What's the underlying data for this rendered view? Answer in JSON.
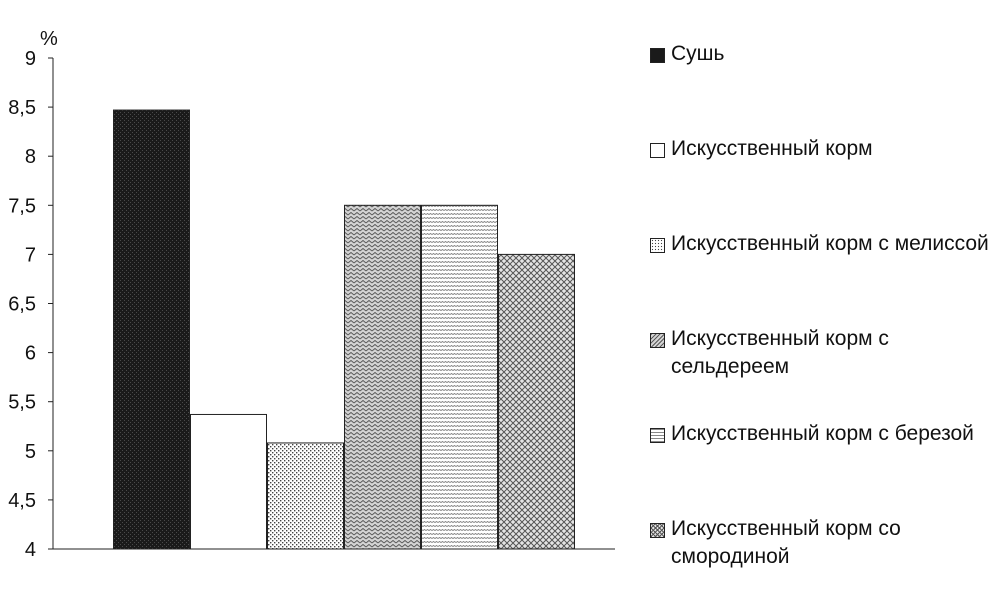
{
  "chart_data": {
    "type": "bar",
    "unit_label": "%",
    "ylim": [
      4,
      9
    ],
    "yticks": [
      "4",
      "4,5",
      "5",
      "5,5",
      "6",
      "6,5",
      "7",
      "7,5",
      "8",
      "8,5",
      "9"
    ],
    "ytick_values": [
      4,
      4.5,
      5,
      5.5,
      6,
      6.5,
      7,
      7.5,
      8,
      8.5,
      9
    ],
    "grid": false,
    "legend_position": "right",
    "series": [
      {
        "name": "Сушь",
        "value": 8.47,
        "pattern": "solid-dark"
      },
      {
        "name": "Искусственный корм",
        "value": 5.37,
        "pattern": "white"
      },
      {
        "name": "Искусственный корм с мелиссой",
        "value": 5.08,
        "pattern": "dots"
      },
      {
        "name": "Искусственный корм с сельдереем",
        "value": 7.5,
        "pattern": "dense-zigzag"
      },
      {
        "name": "Искусственный корм с березой",
        "value": 7.5,
        "pattern": "horizontal-waves"
      },
      {
        "name": "Искусственный корм со смородиной",
        "value": 7.0,
        "pattern": "crosshatch"
      }
    ]
  }
}
